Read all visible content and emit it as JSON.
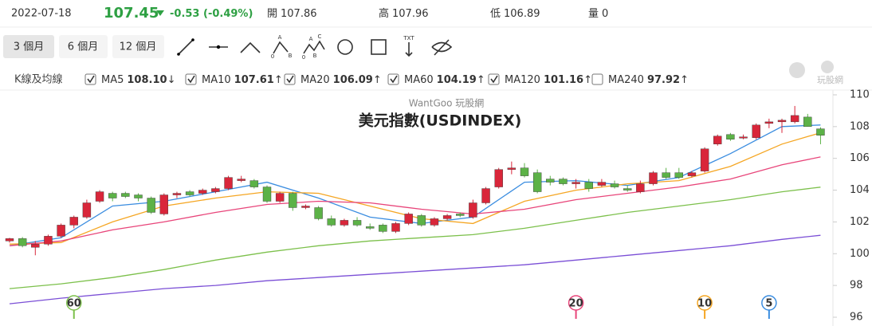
{
  "header": {
    "date": "2022-07-18",
    "price": 107.45,
    "change": -0.53,
    "change_pct": -0.49,
    "change_pct_label": "(-0.49%)",
    "fields": [
      {
        "label": "開",
        "value": 107.86
      },
      {
        "label": "高",
        "value": 107.96
      },
      {
        "label": "低",
        "value": 106.89
      },
      {
        "label": "量",
        "value": 0
      }
    ]
  },
  "toolbar": {
    "ranges": [
      "3 個月",
      "6 個月",
      "12 個月"
    ],
    "abc1": [
      "A",
      "0",
      "B"
    ],
    "abc2": [
      "A",
      "C",
      "0",
      "B"
    ],
    "txt": "TXT"
  },
  "logo": "玩股網",
  "chart_data": {
    "type": "candlestick",
    "watermark": "WantGoo 玩股網",
    "title": "美元指數(USDINDEX)",
    "legend_title": "K線及均線",
    "up_color": "#d9263a",
    "down_color": "#5cb247",
    "ylim": [
      96,
      110.35
    ],
    "yticks": [
      96,
      98,
      100,
      102,
      104,
      106,
      108,
      110
    ],
    "ohlc": [
      [
        100.8,
        101.0,
        100.7,
        100.95
      ],
      [
        100.95,
        101.05,
        100.4,
        100.5
      ],
      [
        100.4,
        100.8,
        99.9,
        100.6
      ],
      [
        100.6,
        101.2,
        100.5,
        101.1
      ],
      [
        101.1,
        101.9,
        101.0,
        101.8
      ],
      [
        101.8,
        102.4,
        101.6,
        102.3
      ],
      [
        102.3,
        103.4,
        102.2,
        103.2
      ],
      [
        103.3,
        104.0,
        103.2,
        103.9
      ],
      [
        103.8,
        103.9,
        103.3,
        103.5
      ],
      [
        103.8,
        103.9,
        103.5,
        103.6
      ],
      [
        103.7,
        103.8,
        103.3,
        103.5
      ],
      [
        103.5,
        103.6,
        102.5,
        102.6
      ],
      [
        102.5,
        103.8,
        102.4,
        103.7
      ],
      [
        103.7,
        103.9,
        103.5,
        103.8
      ],
      [
        103.9,
        104.0,
        103.6,
        103.7
      ],
      [
        103.8,
        104.1,
        103.7,
        104.0
      ],
      [
        103.9,
        104.2,
        103.8,
        104.1
      ],
      [
        104.1,
        104.9,
        104.0,
        104.8
      ],
      [
        104.6,
        104.9,
        104.5,
        104.7
      ],
      [
        104.6,
        104.7,
        104.1,
        104.2
      ],
      [
        104.2,
        104.3,
        103.2,
        103.3
      ],
      [
        103.3,
        103.9,
        103.2,
        103.8
      ],
      [
        103.8,
        103.9,
        102.7,
        102.9
      ],
      [
        102.9,
        103.1,
        102.8,
        103.0
      ],
      [
        102.9,
        103.0,
        102.1,
        102.2
      ],
      [
        102.2,
        102.4,
        101.7,
        101.8
      ],
      [
        101.8,
        102.2,
        101.7,
        102.1
      ],
      [
        102.1,
        102.3,
        101.7,
        101.8
      ],
      [
        101.7,
        101.9,
        101.5,
        101.6
      ],
      [
        101.8,
        101.9,
        101.3,
        101.4
      ],
      [
        101.4,
        102.0,
        101.3,
        101.9
      ],
      [
        101.9,
        102.6,
        101.8,
        102.5
      ],
      [
        102.4,
        102.5,
        101.7,
        101.8
      ],
      [
        101.8,
        102.3,
        101.7,
        102.2
      ],
      [
        102.2,
        102.5,
        102.1,
        102.4
      ],
      [
        102.5,
        102.6,
        102.3,
        102.4
      ],
      [
        102.3,
        103.4,
        102.2,
        103.2
      ],
      [
        103.2,
        104.2,
        103.1,
        104.1
      ],
      [
        104.2,
        105.4,
        104.1,
        105.3
      ],
      [
        105.3,
        105.8,
        105.0,
        105.4
      ],
      [
        105.4,
        105.7,
        104.8,
        104.9
      ],
      [
        105.1,
        105.3,
        103.8,
        103.9
      ],
      [
        104.7,
        104.9,
        104.3,
        104.5
      ],
      [
        104.7,
        104.8,
        104.3,
        104.4
      ],
      [
        104.4,
        104.7,
        104.1,
        104.5
      ],
      [
        104.5,
        104.7,
        103.9,
        104.1
      ],
      [
        104.3,
        104.7,
        104.2,
        104.5
      ],
      [
        104.4,
        104.6,
        104.1,
        104.2
      ],
      [
        104.1,
        104.3,
        103.9,
        104.0
      ],
      [
        103.9,
        104.6,
        103.8,
        104.4
      ],
      [
        104.4,
        105.2,
        104.3,
        105.1
      ],
      [
        105.1,
        105.4,
        104.7,
        104.8
      ],
      [
        105.1,
        105.4,
        104.7,
        104.8
      ],
      [
        104.9,
        105.2,
        104.8,
        105.1
      ],
      [
        105.2,
        106.7,
        105.1,
        106.6
      ],
      [
        106.9,
        107.5,
        106.8,
        107.4
      ],
      [
        107.5,
        107.6,
        107.1,
        107.2
      ],
      [
        107.3,
        107.5,
        107.2,
        107.35
      ],
      [
        107.3,
        108.2,
        107.2,
        108.1
      ],
      [
        108.2,
        108.5,
        107.9,
        108.3
      ],
      [
        108.3,
        108.5,
        107.6,
        108.4
      ],
      [
        108.3,
        109.3,
        108.2,
        108.7
      ],
      [
        108.6,
        108.8,
        108.0,
        108.0
      ],
      [
        107.86,
        107.96,
        106.89,
        107.45
      ]
    ],
    "ma_x": [
      0,
      4,
      8,
      12,
      16,
      20,
      24,
      28,
      32,
      36,
      40,
      44,
      48,
      52,
      56,
      60,
      63
    ],
    "series": [
      {
        "name": "MA5",
        "color": "#3b8de0",
        "checked": true,
        "last": 108.1,
        "last_label": "108.10",
        "trend": "↓",
        "values": [
          100.5,
          101.0,
          103.0,
          103.3,
          103.9,
          104.5,
          103.5,
          102.3,
          101.9,
          102.3,
          104.5,
          104.6,
          104.3,
          104.8,
          106.3,
          108.0,
          108.1
        ]
      },
      {
        "name": "MA10",
        "color": "#f5a623",
        "checked": true,
        "last": 107.61,
        "trend": "↑",
        "values": [
          100.6,
          100.7,
          102.0,
          103.0,
          103.5,
          103.9,
          103.8,
          103.0,
          102.2,
          101.9,
          103.3,
          104.0,
          104.4,
          104.6,
          105.5,
          106.9,
          107.61
        ]
      },
      {
        "name": "MA20",
        "color": "#e8457a",
        "checked": true,
        "last": 106.09,
        "trend": "↑",
        "values": [
          100.5,
          100.8,
          101.5,
          102.0,
          102.6,
          103.1,
          103.3,
          103.2,
          102.8,
          102.5,
          102.8,
          103.4,
          103.8,
          104.2,
          104.7,
          105.6,
          106.09
        ]
      },
      {
        "name": "MA60",
        "color": "#7cc04b",
        "checked": true,
        "last": 104.19,
        "trend": "↑",
        "values": [
          97.8,
          98.1,
          98.5,
          99.0,
          99.6,
          100.1,
          100.5,
          100.8,
          101.0,
          101.2,
          101.6,
          102.1,
          102.6,
          103.0,
          103.4,
          103.9,
          104.19
        ]
      },
      {
        "name": "MA120",
        "color": "#7b4fd6",
        "checked": true,
        "last": 101.16,
        "trend": "↑",
        "values": [
          96.85,
          97.2,
          97.5,
          97.8,
          98.0,
          98.3,
          98.5,
          98.7,
          98.9,
          99.1,
          99.3,
          99.6,
          99.9,
          100.2,
          100.5,
          100.9,
          101.16
        ]
      },
      {
        "name": "MA240",
        "color": "#f06a4a",
        "checked": false,
        "last": 97.92,
        "trend": "↑"
      }
    ],
    "markers": [
      {
        "period": 60,
        "index": 5,
        "color": "#7cc04b"
      },
      {
        "period": 20,
        "index": 44,
        "color": "#e8457a"
      },
      {
        "period": 10,
        "index": 54,
        "color": "#f5a623"
      },
      {
        "period": 5,
        "index": 59,
        "color": "#3b8de0"
      }
    ]
  }
}
